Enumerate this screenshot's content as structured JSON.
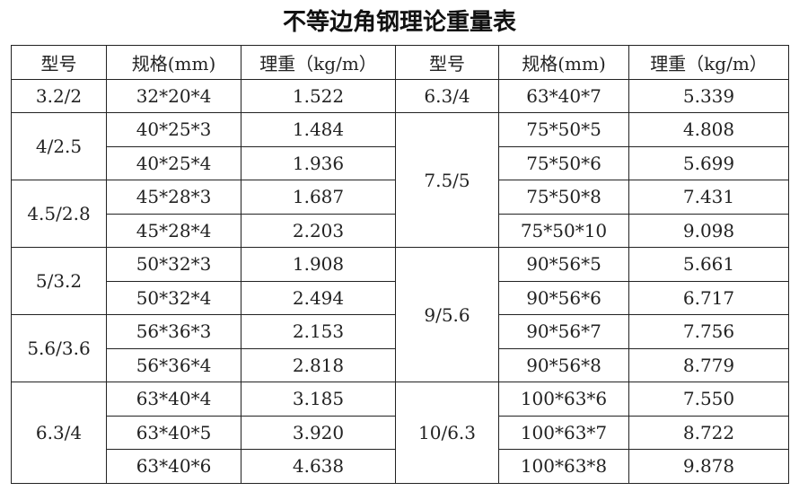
{
  "title": "不等边角钢理论重量表",
  "table": {
    "headers": [
      "型号",
      "规格(mm)",
      "理重（kg/m）",
      "型号",
      "规格(mm)",
      "理重（kg/m）"
    ],
    "left": [
      {
        "model": "3.2/2",
        "items": [
          {
            "spec": "32*20*4",
            "weight": "1.522"
          }
        ]
      },
      {
        "model": "4/2.5",
        "items": [
          {
            "spec": "40*25*3",
            "weight": "1.484"
          },
          {
            "spec": "40*25*4",
            "weight": "1.936"
          }
        ]
      },
      {
        "model": "4.5/2.8",
        "items": [
          {
            "spec": "45*28*3",
            "weight": "1.687"
          },
          {
            "spec": "45*28*4",
            "weight": "2.203"
          }
        ]
      },
      {
        "model": "5/3.2",
        "items": [
          {
            "spec": "50*32*3",
            "weight": "1.908"
          },
          {
            "spec": "50*32*4",
            "weight": "2.494"
          }
        ]
      },
      {
        "model": "5.6/3.6",
        "items": [
          {
            "spec": "56*36*3",
            "weight": "2.153"
          },
          {
            "spec": "56*36*4",
            "weight": "2.818"
          }
        ]
      },
      {
        "model": "6.3/4",
        "items": [
          {
            "spec": "63*40*4",
            "weight": "3.185"
          },
          {
            "spec": "63*40*5",
            "weight": "3.920"
          },
          {
            "spec": "63*40*6",
            "weight": "4.638"
          }
        ]
      }
    ],
    "right": [
      {
        "model": "6.3/4",
        "items": [
          {
            "spec": "63*40*7",
            "weight": "5.339"
          }
        ]
      },
      {
        "model": "7.5/5",
        "items": [
          {
            "spec": "75*50*5",
            "weight": "4.808"
          },
          {
            "spec": "75*50*6",
            "weight": "5.699"
          },
          {
            "spec": "75*50*8",
            "weight": "7.431"
          },
          {
            "spec": "75*50*10",
            "weight": "9.098"
          }
        ]
      },
      {
        "model": "9/5.6",
        "items": [
          {
            "spec": "90*56*5",
            "weight": "5.661"
          },
          {
            "spec": "90*56*6",
            "weight": "6.717"
          },
          {
            "spec": "90*56*7",
            "weight": "7.756"
          },
          {
            "spec": "90*56*8",
            "weight": "8.779"
          }
        ]
      },
      {
        "model": "10/6.3",
        "items": [
          {
            "spec": "100*63*6",
            "weight": "7.550"
          },
          {
            "spec": "100*63*7",
            "weight": "8.722"
          },
          {
            "spec": "100*63*8",
            "weight": "9.878"
          }
        ]
      }
    ]
  }
}
